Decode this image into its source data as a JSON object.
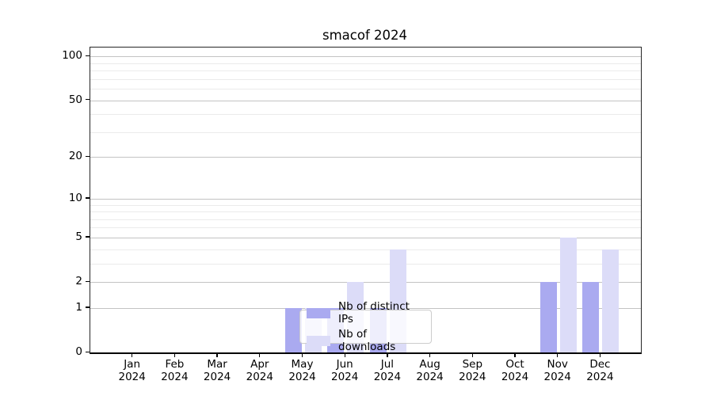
{
  "title": "smacof 2024",
  "legend": {
    "items": [
      {
        "label": "Nb of distinct IPs",
        "color": "#aaaaf0"
      },
      {
        "label": "Nb of downloads",
        "color": "#dcdcf8"
      }
    ]
  },
  "chart_data": {
    "type": "bar",
    "title": "smacof 2024",
    "categories": [
      "Jan 2024",
      "Feb 2024",
      "Mar 2024",
      "Apr 2024",
      "May 2024",
      "Jun 2024",
      "Jul 2024",
      "Aug 2024",
      "Sep 2024",
      "Oct 2024",
      "Nov 2024",
      "Dec 2024"
    ],
    "series": [
      {
        "name": "Nb of distinct IPs",
        "color": "#aaaaf0",
        "values": [
          0,
          0,
          0,
          0,
          1,
          1,
          1,
          0,
          0,
          0,
          2,
          2
        ]
      },
      {
        "name": "Nb of downloads",
        "color": "#dcdcf8",
        "values": [
          0,
          0,
          0,
          0,
          1,
          2,
          4,
          0,
          0,
          0,
          5,
          4
        ]
      }
    ],
    "xlabel": "",
    "ylabel": "",
    "y_scale": "log1p",
    "y_ticks": [
      0,
      1,
      2,
      5,
      10,
      20,
      50,
      100
    ],
    "y_minor_ticks": [
      3,
      4,
      6,
      7,
      8,
      9,
      30,
      40,
      60,
      70,
      80,
      90
    ],
    "ylim": [
      0,
      115
    ],
    "grid": true,
    "legend_position": "inside lower-center-left"
  }
}
